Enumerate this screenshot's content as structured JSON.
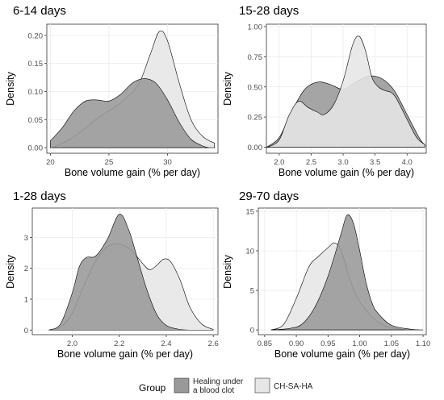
{
  "legend": {
    "title": "Group",
    "items": [
      {
        "label_lines": [
          "Healing under",
          "a blood clot"
        ],
        "fill": "#999999"
      },
      {
        "label_lines": [
          "CH-SA-HA"
        ],
        "fill": "#e6e6e6"
      }
    ]
  },
  "colors": {
    "panel_bg": "#ffffff",
    "grid": "#ebebeb",
    "border": "#333333",
    "outline": "#000000"
  },
  "chart_data": [
    {
      "type": "area",
      "title": "6-14 days",
      "xlabel": "Bone volume gain (% per day)",
      "ylabel": "Density",
      "xlim": [
        19.7,
        34.3
      ],
      "ylim": [
        -0.01,
        0.22
      ],
      "xticks": [
        20,
        25,
        30
      ],
      "xtick_labels": [
        "20",
        "25",
        "30"
      ],
      "yticks": [
        0,
        0.05,
        0.1,
        0.15,
        0.2
      ],
      "ytick_labels": [
        "0.00",
        "0.05",
        "0.10",
        "0.15",
        "0.20"
      ],
      "grid": true,
      "series": [
        {
          "group_index": 1,
          "points": [
            [
              20.2,
              0.0
            ],
            [
              22,
              0.019
            ],
            [
              24,
              0.052
            ],
            [
              26,
              0.08
            ],
            [
              27.5,
              0.112
            ],
            [
              28.5,
              0.165
            ],
            [
              29.3,
              0.207
            ],
            [
              30,
              0.19
            ],
            [
              31,
              0.115
            ],
            [
              32,
              0.05
            ],
            [
              33,
              0.02
            ],
            [
              34,
              0.008
            ]
          ]
        },
        {
          "group_index": 0,
          "points": [
            [
              20,
              0.012
            ],
            [
              21,
              0.035
            ],
            [
              22,
              0.065
            ],
            [
              23,
              0.083
            ],
            [
              24,
              0.085
            ],
            [
              25,
              0.083
            ],
            [
              26,
              0.095
            ],
            [
              27,
              0.115
            ],
            [
              28,
              0.123
            ],
            [
              29,
              0.115
            ],
            [
              30,
              0.085
            ],
            [
              31,
              0.045
            ],
            [
              32,
              0.015
            ],
            [
              33,
              0.003
            ],
            [
              33.5,
              0.0
            ]
          ]
        }
      ]
    },
    {
      "type": "area",
      "title": "15-28 days",
      "xlabel": "Bone volume gain (% per day)",
      "ylabel": "Density",
      "xlim": [
        1.8,
        4.3
      ],
      "ylim": [
        -0.05,
        1.02
      ],
      "xticks": [
        2,
        2.5,
        3,
        3.5,
        4
      ],
      "xtick_labels": [
        "2.0",
        "2.5",
        "3.0",
        "3.5",
        "4.0"
      ],
      "yticks": [
        0,
        0.25,
        0.5,
        0.75,
        1
      ],
      "ytick_labels": [
        "0.00",
        "0.25",
        "0.50",
        "0.75",
        "1.00"
      ],
      "grid": true,
      "series": [
        {
          "group_index": 0,
          "points": [
            [
              1.8,
              0.0
            ],
            [
              2.0,
              0.08
            ],
            [
              2.2,
              0.3
            ],
            [
              2.4,
              0.48
            ],
            [
              2.6,
              0.54
            ],
            [
              2.8,
              0.52
            ],
            [
              3.0,
              0.48
            ],
            [
              3.2,
              0.54
            ],
            [
              3.4,
              0.59
            ],
            [
              3.6,
              0.57
            ],
            [
              3.8,
              0.47
            ],
            [
              4.0,
              0.27
            ],
            [
              4.2,
              0.07
            ],
            [
              4.28,
              0.02
            ]
          ]
        },
        {
          "group_index": 1,
          "points": [
            [
              1.82,
              0.0
            ],
            [
              2.0,
              0.06
            ],
            [
              2.15,
              0.26
            ],
            [
              2.3,
              0.38
            ],
            [
              2.45,
              0.33
            ],
            [
              2.6,
              0.29
            ],
            [
              2.7,
              0.27
            ],
            [
              2.85,
              0.35
            ],
            [
              3.0,
              0.55
            ],
            [
              3.15,
              0.85
            ],
            [
              3.25,
              0.92
            ],
            [
              3.35,
              0.8
            ],
            [
              3.45,
              0.58
            ],
            [
              3.55,
              0.5
            ],
            [
              3.65,
              0.47
            ],
            [
              3.8,
              0.43
            ],
            [
              4.0,
              0.23
            ],
            [
              4.15,
              0.08
            ],
            [
              4.28,
              0.02
            ]
          ]
        }
      ]
    },
    {
      "type": "area",
      "title": "1-28 days",
      "xlabel": "Bone volume gain (% per day)",
      "ylabel": "Density",
      "xlim": [
        1.83,
        2.62
      ],
      "ylim": [
        -0.15,
        3.95
      ],
      "xticks": [
        2,
        2.2,
        2.4,
        2.6
      ],
      "xtick_labels": [
        "2.0",
        "2.2",
        "2.4",
        "2.6"
      ],
      "yticks": [
        0,
        1,
        2,
        3
      ],
      "ytick_labels": [
        "0",
        "1",
        "2",
        "3"
      ],
      "grid": true,
      "series": [
        {
          "group_index": 1,
          "points": [
            [
              1.9,
              0.0
            ],
            [
              1.95,
              0.1
            ],
            [
              2.0,
              0.55
            ],
            [
              2.05,
              1.45
            ],
            [
              2.1,
              2.25
            ],
            [
              2.15,
              2.7
            ],
            [
              2.2,
              2.78
            ],
            [
              2.25,
              2.6
            ],
            [
              2.3,
              2.15
            ],
            [
              2.33,
              1.95
            ],
            [
              2.36,
              2.1
            ],
            [
              2.39,
              2.3
            ],
            [
              2.42,
              2.2
            ],
            [
              2.46,
              1.6
            ],
            [
              2.5,
              0.75
            ],
            [
              2.55,
              0.2
            ],
            [
              2.6,
              0.02
            ]
          ]
        },
        {
          "group_index": 0,
          "points": [
            [
              1.9,
              0.0
            ],
            [
              1.95,
              0.2
            ],
            [
              2.0,
              1.2
            ],
            [
              2.03,
              2.05
            ],
            [
              2.06,
              2.35
            ],
            [
              2.1,
              2.4
            ],
            [
              2.15,
              2.95
            ],
            [
              2.2,
              3.75
            ],
            [
              2.24,
              3.25
            ],
            [
              2.28,
              2.25
            ],
            [
              2.32,
              1.25
            ],
            [
              2.36,
              0.5
            ],
            [
              2.4,
              0.15
            ],
            [
              2.45,
              0.03
            ],
            [
              2.5,
              0.0
            ]
          ]
        }
      ]
    },
    {
      "type": "area",
      "title": "29-70 days",
      "xlabel": "Bone volume gain (% per day)",
      "ylabel": "Density",
      "xlim": [
        0.84,
        1.105
      ],
      "ylim": [
        -0.6,
        15.4
      ],
      "xticks": [
        0.85,
        0.9,
        0.95,
        1.0,
        1.05,
        1.1
      ],
      "xtick_labels": [
        "0.85",
        "0.90",
        "0.95",
        "1.00",
        "1.05",
        "1.10"
      ],
      "yticks": [
        0,
        5,
        10,
        15
      ],
      "ytick_labels": [
        "0",
        "5",
        "10",
        "15"
      ],
      "grid": true,
      "series": [
        {
          "group_index": 1,
          "points": [
            [
              0.86,
              0.0
            ],
            [
              0.88,
              0.7
            ],
            [
              0.9,
              4.0
            ],
            [
              0.92,
              8.0
            ],
            [
              0.935,
              9.3
            ],
            [
              0.95,
              10.4
            ],
            [
              0.96,
              11.0
            ],
            [
              0.97,
              10.2
            ],
            [
              0.98,
              7.6
            ],
            [
              0.99,
              5.2
            ],
            [
              1.0,
              3.6
            ],
            [
              1.02,
              1.6
            ],
            [
              1.04,
              0.5
            ],
            [
              1.07,
              0.05
            ]
          ]
        },
        {
          "group_index": 0,
          "points": [
            [
              0.86,
              0.0
            ],
            [
              0.89,
              0.2
            ],
            [
              0.91,
              0.8
            ],
            [
              0.93,
              3.0
            ],
            [
              0.95,
              6.8
            ],
            [
              0.97,
              12.0
            ],
            [
              0.98,
              14.5
            ],
            [
              0.99,
              13.5
            ],
            [
              1.0,
              10.0
            ],
            [
              1.01,
              6.0
            ],
            [
              1.02,
              3.3
            ],
            [
              1.03,
              2.0
            ],
            [
              1.05,
              0.6
            ],
            [
              1.08,
              0.1
            ],
            [
              1.1,
              0.0
            ]
          ]
        }
      ]
    }
  ]
}
